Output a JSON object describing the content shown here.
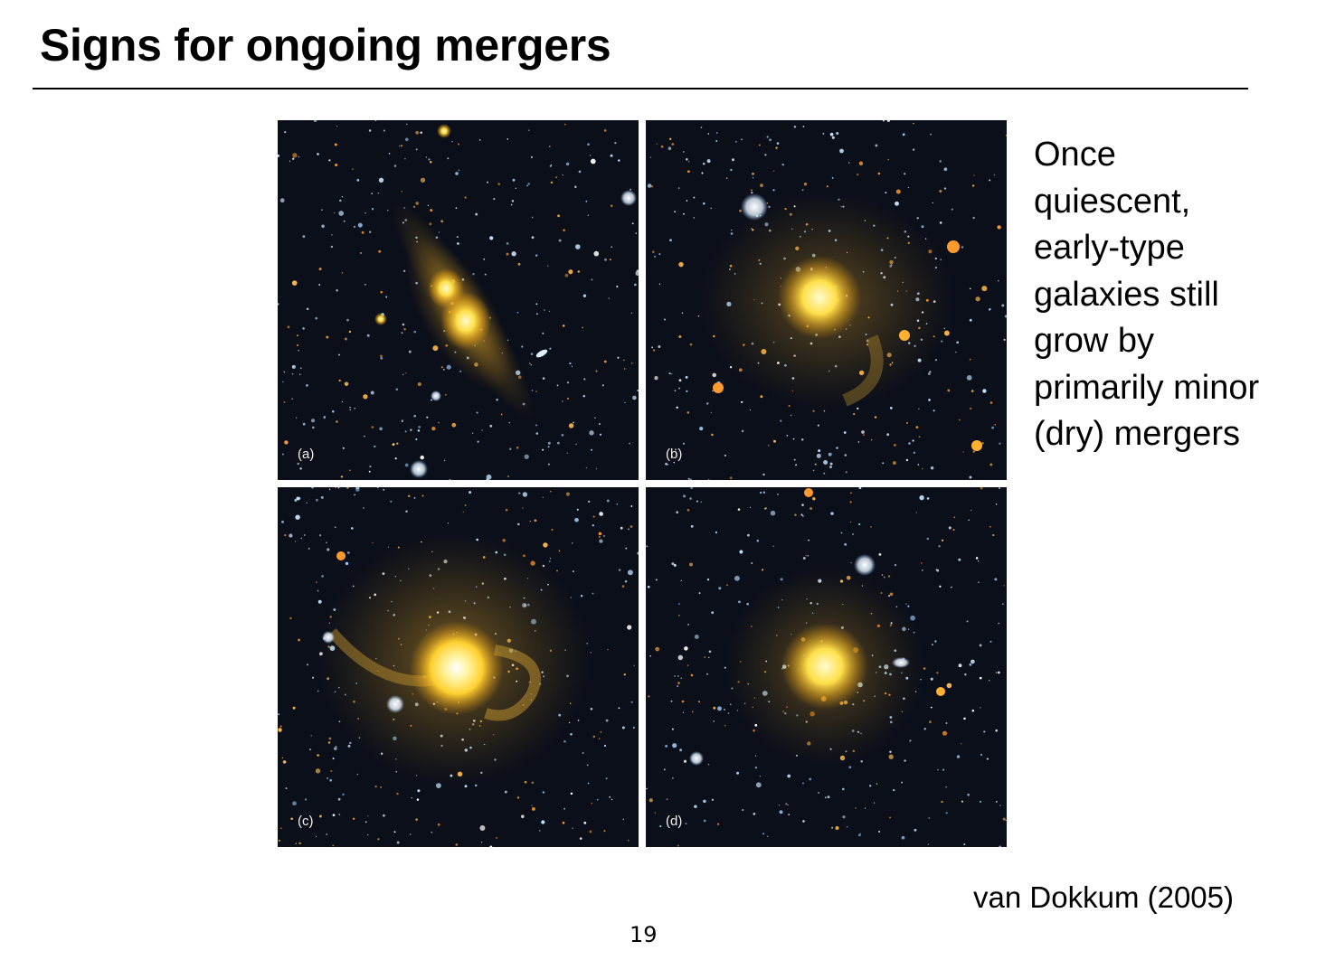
{
  "slide": {
    "title": "Signs for ongoing mergers",
    "side_text_lines": [
      "Once",
      "quiescent,",
      "early-type",
      "galaxies still",
      "grow by",
      "primarily minor",
      "(dry) mergers"
    ],
    "citation": "van Dokkum (2005)",
    "page_number": "19"
  },
  "panels": [
    {
      "label": "(a)"
    },
    {
      "label": "(b)"
    },
    {
      "label": "(c)"
    },
    {
      "label": "(d)"
    }
  ],
  "colors": {
    "sky_background": "#0b0f1a",
    "galaxy_core": "#fff3a0",
    "galaxy_halo": "#d9a21c",
    "star_blue": "#bfe3ff",
    "star_orange": "#ff9a2e",
    "star_white": "#ffffff"
  }
}
